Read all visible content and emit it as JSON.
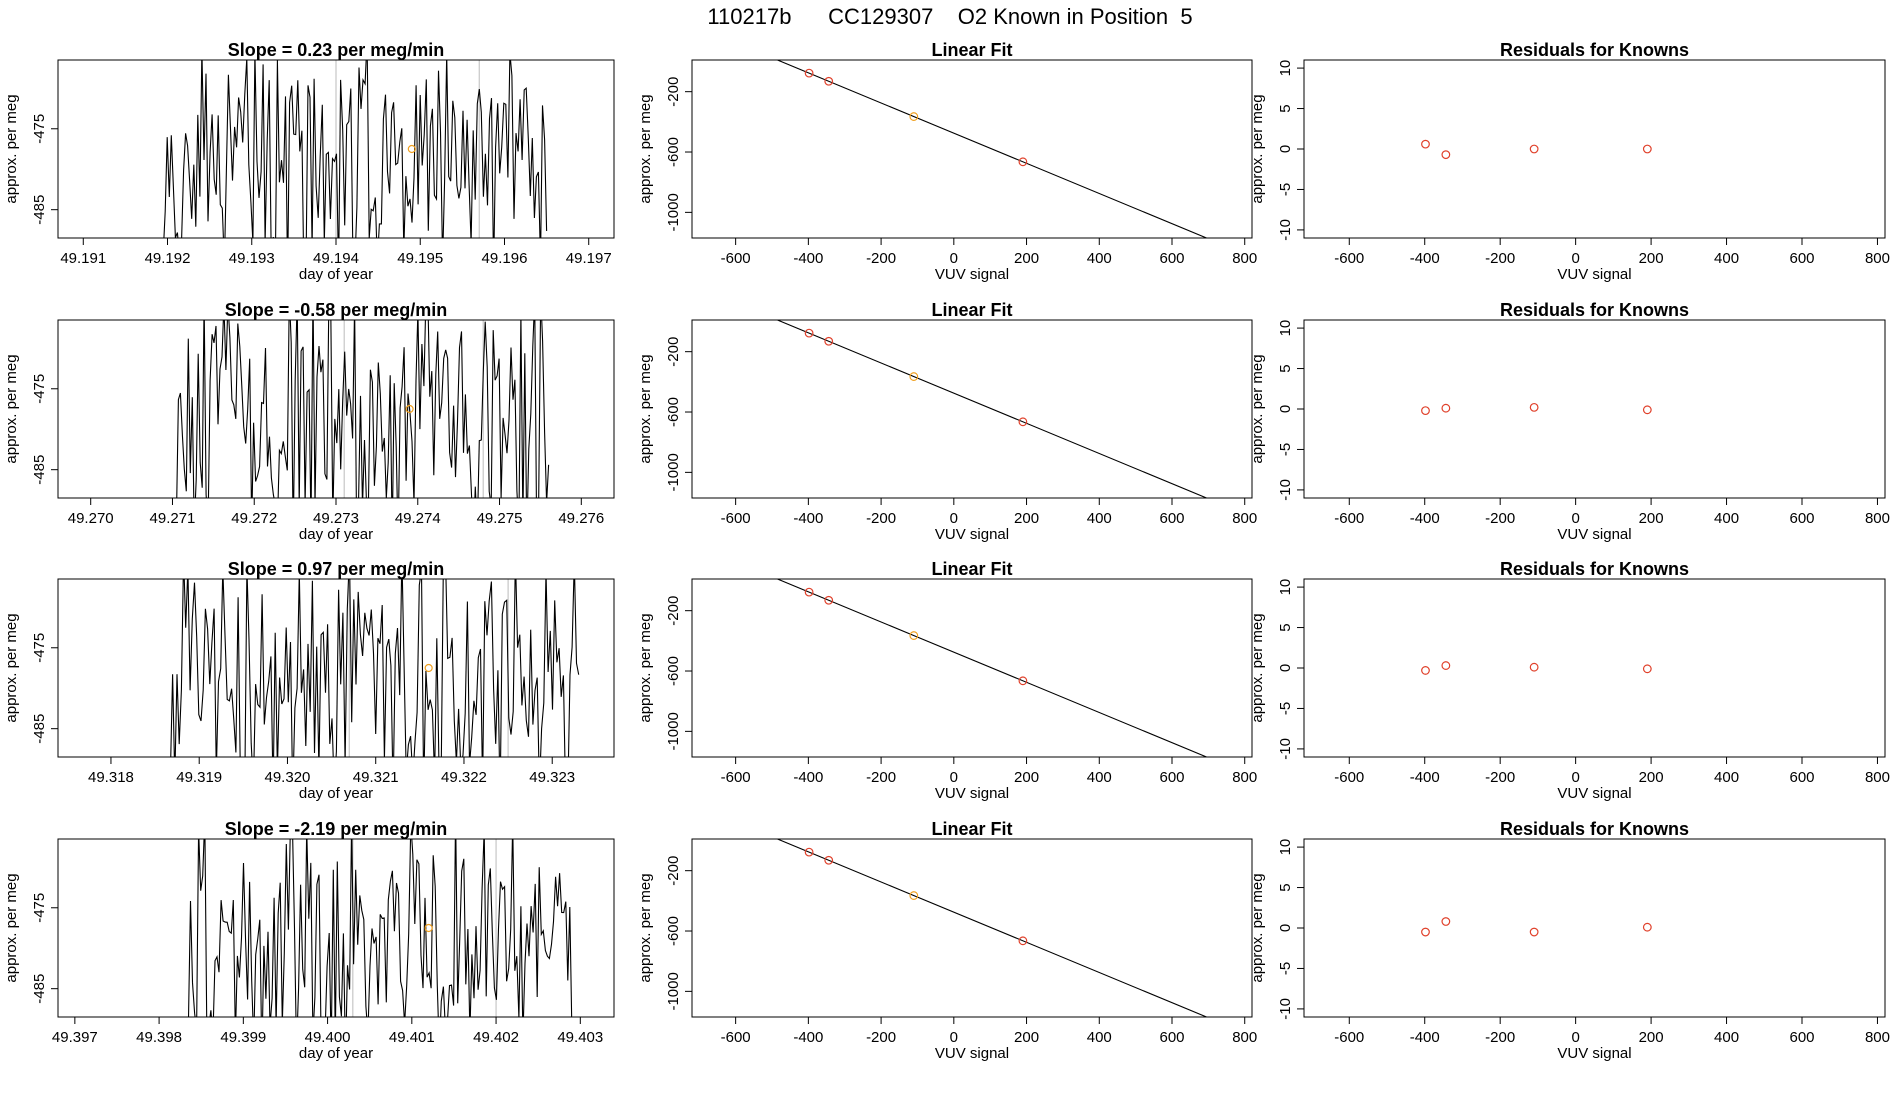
{
  "figure": {
    "title": "110217b      CC129307    O2 Known in Position  5",
    "colors": {
      "trace": "#000000",
      "known": "#e0402a",
      "sample": "#f0a020",
      "axis": "#000000",
      "cycle_marker": "#bbbbbb"
    }
  },
  "chart_data": [
    {
      "type": "line",
      "row": 0,
      "panel": "time-trace",
      "title": "Slope =  0.23  per meg/min",
      "slope": 0.23,
      "xlabel": "day of year",
      "ylabel": "approx. per meg",
      "xlim": [
        49.1907,
        49.1973
      ],
      "ylim": [
        -488.5,
        -466.5
      ],
      "xticks": [
        49.191,
        49.192,
        49.193,
        49.194,
        49.195,
        49.196,
        49.197
      ],
      "xtick_labels": [
        "49.191",
        "49.192",
        "49.193",
        "49.194",
        "49.195",
        "49.196",
        "49.197"
      ],
      "yticks": [
        -485,
        -475
      ],
      "ytick_labels": [
        "-485",
        "-475"
      ],
      "trace_start": 49.1919,
      "trace_end": 49.1965,
      "cycle_markers": [
        49.194,
        49.1957
      ],
      "sample_point": {
        "x": 49.1949,
        "y": -477.5
      },
      "seed": 11
    },
    {
      "type": "scatter",
      "row": 0,
      "panel": "linear-fit",
      "title": "Linear Fit",
      "xlabel": "VUV signal",
      "ylabel": "approx. per meg",
      "xlim": [
        -720,
        820
      ],
      "ylim": [
        -1170,
        10
      ],
      "xticks": [
        -600,
        -400,
        -200,
        0,
        200,
        400,
        600,
        800
      ],
      "xtick_labels": [
        "-600",
        "-400",
        "-200",
        "0",
        "200",
        "400",
        "600",
        "800"
      ],
      "yticks": [
        -1000,
        -600,
        -200
      ],
      "ytick_labels": [
        "-1000",
        "-600",
        "-200"
      ],
      "fit_line": {
        "slope": -1.0,
        "intercept": -475,
        "x_range": [
          -660,
          745
        ]
      },
      "knowns": [
        {
          "x": -398,
          "y": -77
        },
        {
          "x": -344,
          "y": -131
        },
        {
          "x": 190,
          "y": -665
        }
      ],
      "sample": {
        "x": -110,
        "y": -365
      }
    },
    {
      "type": "scatter",
      "row": 0,
      "panel": "residuals",
      "title": "Residuals for Knowns",
      "xlabel": "VUV signal",
      "ylabel": "approx. per meg",
      "xlim": [
        -720,
        820
      ],
      "ylim": [
        -11,
        11
      ],
      "xticks": [
        -600,
        -400,
        -200,
        0,
        200,
        400,
        600,
        800
      ],
      "xtick_labels": [
        "-600",
        "-400",
        "-200",
        "0",
        "200",
        "400",
        "600",
        "800"
      ],
      "yticks": [
        -10,
        -5,
        0,
        5,
        10
      ],
      "ytick_labels": [
        "-10",
        "-5",
        "0",
        "5",
        "10"
      ],
      "points": [
        {
          "x": -398,
          "y": 0.6
        },
        {
          "x": -344,
          "y": -0.7
        },
        {
          "x": -110,
          "y": 0.0
        },
        {
          "x": 190,
          "y": 0.0
        }
      ]
    },
    {
      "type": "line",
      "row": 1,
      "panel": "time-trace",
      "title": "Slope =  -0.58  per meg/min",
      "slope": -0.58,
      "xlabel": "day of year",
      "ylabel": "approx. per meg",
      "xlim": [
        49.2696,
        49.2764
      ],
      "ylim": [
        -488.5,
        -466.5
      ],
      "xticks": [
        49.27,
        49.271,
        49.272,
        49.273,
        49.274,
        49.275,
        49.276
      ],
      "xtick_labels": [
        "49.270",
        "49.271",
        "49.272",
        "49.273",
        "49.274",
        "49.275",
        "49.276"
      ],
      "yticks": [
        -485,
        -475
      ],
      "ytick_labels": [
        "-485",
        "-475"
      ],
      "trace_start": 49.271,
      "trace_end": 49.2756,
      "cycle_markers": [
        49.2731,
        49.2748
      ],
      "sample_point": {
        "x": 49.2739,
        "y": -477.5
      },
      "seed": 23
    },
    {
      "type": "scatter",
      "row": 1,
      "panel": "linear-fit",
      "title": "Linear Fit",
      "xlabel": "VUV signal",
      "ylabel": "approx. per meg",
      "xlim": [
        -720,
        820
      ],
      "ylim": [
        -1170,
        10
      ],
      "xticks": [
        -600,
        -400,
        -200,
        0,
        200,
        400,
        600,
        800
      ],
      "xtick_labels": [
        "-600",
        "-400",
        "-200",
        "0",
        "200",
        "400",
        "600",
        "800"
      ],
      "yticks": [
        -1000,
        -600,
        -200
      ],
      "ytick_labels": [
        "-1000",
        "-600",
        "-200"
      ],
      "fit_line": {
        "slope": -1.0,
        "intercept": -475,
        "x_range": [
          -660,
          745
        ]
      },
      "knowns": [
        {
          "x": -398,
          "y": -77
        },
        {
          "x": -344,
          "y": -131
        },
        {
          "x": 190,
          "y": -665
        }
      ],
      "sample": {
        "x": -110,
        "y": -365
      }
    },
    {
      "type": "scatter",
      "row": 1,
      "panel": "residuals",
      "title": "Residuals for Knowns",
      "xlabel": "VUV signal",
      "ylabel": "approx. per meg",
      "xlim": [
        -720,
        820
      ],
      "ylim": [
        -11,
        11
      ],
      "xticks": [
        -600,
        -400,
        -200,
        0,
        200,
        400,
        600,
        800
      ],
      "xtick_labels": [
        "-600",
        "-400",
        "-200",
        "0",
        "200",
        "400",
        "600",
        "800"
      ],
      "yticks": [
        -10,
        -5,
        0,
        5,
        10
      ],
      "ytick_labels": [
        "-10",
        "-5",
        "0",
        "5",
        "10"
      ],
      "points": [
        {
          "x": -398,
          "y": -0.2
        },
        {
          "x": -344,
          "y": 0.1
        },
        {
          "x": -110,
          "y": 0.2
        },
        {
          "x": 190,
          "y": -0.1
        }
      ]
    },
    {
      "type": "line",
      "row": 2,
      "panel": "time-trace",
      "title": "Slope =  0.97  per meg/min",
      "slope": 0.97,
      "xlabel": "day of year",
      "ylabel": "approx. per meg",
      "xlim": [
        49.3174,
        49.3237
      ],
      "ylim": [
        -488.5,
        -466.5
      ],
      "xticks": [
        49.318,
        49.319,
        49.32,
        49.321,
        49.322,
        49.323
      ],
      "xtick_labels": [
        "49.318",
        "49.319",
        "49.320",
        "49.321",
        "49.322",
        "49.323"
      ],
      "yticks": [
        -485,
        -475
      ],
      "ytick_labels": [
        "-485",
        "-475"
      ],
      "trace_start": 49.3186,
      "trace_end": 49.3233,
      "cycle_markers": [
        49.3207,
        49.3225
      ],
      "sample_point": {
        "x": 49.3216,
        "y": -477.5
      },
      "seed": 37
    },
    {
      "type": "scatter",
      "row": 2,
      "panel": "linear-fit",
      "title": "Linear Fit",
      "xlabel": "VUV signal",
      "ylabel": "approx. per meg",
      "xlim": [
        -720,
        820
      ],
      "ylim": [
        -1170,
        10
      ],
      "xticks": [
        -600,
        -400,
        -200,
        0,
        200,
        400,
        600,
        800
      ],
      "xtick_labels": [
        "-600",
        "-400",
        "-200",
        "0",
        "200",
        "400",
        "600",
        "800"
      ],
      "yticks": [
        -1000,
        -600,
        -200
      ],
      "ytick_labels": [
        "-1000",
        "-600",
        "-200"
      ],
      "fit_line": {
        "slope": -1.0,
        "intercept": -475,
        "x_range": [
          -660,
          745
        ]
      },
      "knowns": [
        {
          "x": -398,
          "y": -77
        },
        {
          "x": -344,
          "y": -131
        },
        {
          "x": 190,
          "y": -665
        }
      ],
      "sample": {
        "x": -110,
        "y": -365
      }
    },
    {
      "type": "scatter",
      "row": 2,
      "panel": "residuals",
      "title": "Residuals for Knowns",
      "xlabel": "VUV signal",
      "ylabel": "approx. per meg",
      "xlim": [
        -720,
        820
      ],
      "ylim": [
        -11,
        11
      ],
      "xticks": [
        -600,
        -400,
        -200,
        0,
        200,
        400,
        600,
        800
      ],
      "xtick_labels": [
        "-600",
        "-400",
        "-200",
        "0",
        "200",
        "400",
        "600",
        "800"
      ],
      "yticks": [
        -10,
        -5,
        0,
        5,
        10
      ],
      "ytick_labels": [
        "-10",
        "-5",
        "0",
        "5",
        "10"
      ],
      "points": [
        {
          "x": -398,
          "y": -0.3
        },
        {
          "x": -344,
          "y": 0.3
        },
        {
          "x": -110,
          "y": 0.1
        },
        {
          "x": 190,
          "y": -0.1
        }
      ]
    },
    {
      "type": "line",
      "row": 3,
      "panel": "time-trace",
      "title": "Slope =  -2.19  per meg/min",
      "slope": -2.19,
      "xlabel": "day of year",
      "ylabel": "approx. per meg",
      "xlim": [
        49.3968,
        49.4034
      ],
      "ylim": [
        -488.5,
        -466.5
      ],
      "xticks": [
        49.397,
        49.398,
        49.399,
        49.4,
        49.401,
        49.402,
        49.403
      ],
      "xtick_labels": [
        "49.397",
        "49.398",
        "49.399",
        "49.400",
        "49.401",
        "49.402",
        "49.403"
      ],
      "yticks": [
        -485,
        -475
      ],
      "ytick_labels": [
        "-485",
        "-475"
      ],
      "trace_start": 49.3983,
      "trace_end": 49.4029,
      "cycle_markers": [
        49.4003,
        49.402
      ],
      "sample_point": {
        "x": 49.4012,
        "y": -477.5
      },
      "seed": 53
    },
    {
      "type": "scatter",
      "row": 3,
      "panel": "linear-fit",
      "title": "Linear Fit",
      "xlabel": "VUV signal",
      "ylabel": "approx. per meg",
      "xlim": [
        -720,
        820
      ],
      "ylim": [
        -1170,
        10
      ],
      "xticks": [
        -600,
        -400,
        -200,
        0,
        200,
        400,
        600,
        800
      ],
      "xtick_labels": [
        "-600",
        "-400",
        "-200",
        "0",
        "200",
        "400",
        "600",
        "800"
      ],
      "yticks": [
        -1000,
        -600,
        -200
      ],
      "ytick_labels": [
        "-1000",
        "-600",
        "-200"
      ],
      "fit_line": {
        "slope": -1.0,
        "intercept": -475,
        "x_range": [
          -660,
          745
        ]
      },
      "knowns": [
        {
          "x": -398,
          "y": -77
        },
        {
          "x": -344,
          "y": -131
        },
        {
          "x": 190,
          "y": -665
        }
      ],
      "sample": {
        "x": -110,
        "y": -365
      }
    },
    {
      "type": "scatter",
      "row": 3,
      "panel": "residuals",
      "title": "Residuals for Knowns",
      "xlabel": "VUV signal",
      "ylabel": "approx. per meg",
      "xlim": [
        -720,
        820
      ],
      "ylim": [
        -11,
        11
      ],
      "xticks": [
        -600,
        -400,
        -200,
        0,
        200,
        400,
        600,
        800
      ],
      "xtick_labels": [
        "-600",
        "-400",
        "-200",
        "0",
        "200",
        "400",
        "600",
        "800"
      ],
      "yticks": [
        -10,
        -5,
        0,
        5,
        10
      ],
      "ytick_labels": [
        "-10",
        "-5",
        "0",
        "5",
        "10"
      ],
      "points": [
        {
          "x": -398,
          "y": -0.5
        },
        {
          "x": -344,
          "y": 0.8
        },
        {
          "x": -110,
          "y": -0.5
        },
        {
          "x": 190,
          "y": 0.1
        }
      ]
    }
  ]
}
